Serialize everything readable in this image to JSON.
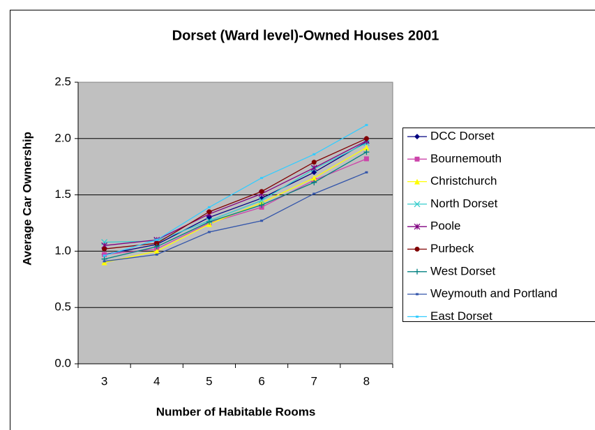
{
  "chart_data": {
    "type": "line",
    "title": "Dorset (Ward level)-Owned Houses 2001",
    "x_label": "Number of Habitable Rooms",
    "y_label": "Average Car Ownership",
    "categories": [
      "3",
      "4",
      "5",
      "6",
      "7",
      "8"
    ],
    "ylim": [
      0,
      2.5
    ],
    "yticks": [
      {
        "value": 0,
        "label": "0.0"
      },
      {
        "value": 0.5,
        "label": "0.5"
      },
      {
        "value": 1,
        "label": "1.0"
      },
      {
        "value": 1.5,
        "label": "1.5"
      },
      {
        "value": 2,
        "label": "2.0"
      },
      {
        "value": 2.5,
        "label": "2.5"
      }
    ],
    "grid": true,
    "legend": "right",
    "series": [
      {
        "name": "DCC Dorset",
        "color": "#000080",
        "marker": "diamond",
        "values": [
          0.97,
          1.06,
          1.3,
          1.47,
          1.7,
          1.97
        ]
      },
      {
        "name": "Bournemouth",
        "color": "#cc44aa",
        "marker": "square",
        "values": [
          0.97,
          1.02,
          1.25,
          1.39,
          1.63,
          1.82
        ]
      },
      {
        "name": "Christchurch",
        "color": "#ffff00",
        "marker": "triangle",
        "values": [
          0.9,
          1.0,
          1.24,
          1.43,
          1.65,
          1.92
        ]
      },
      {
        "name": "North Dorset",
        "color": "#33cccc",
        "marker": "x",
        "values": [
          1.08,
          1.09,
          1.27,
          1.45,
          1.73,
          1.96
        ]
      },
      {
        "name": "Poole",
        "color": "#800080",
        "marker": "star",
        "values": [
          1.05,
          1.1,
          1.33,
          1.51,
          1.74,
          1.98
        ]
      },
      {
        "name": "Purbeck",
        "color": "#800000",
        "marker": "circle",
        "values": [
          1.02,
          1.07,
          1.35,
          1.53,
          1.79,
          2.0
        ]
      },
      {
        "name": "West Dorset",
        "color": "#008080",
        "marker": "plus",
        "values": [
          0.93,
          1.04,
          1.26,
          1.41,
          1.61,
          1.88
        ]
      },
      {
        "name": "Weymouth and Portland",
        "color": "#3355aa",
        "marker": "dash",
        "values": [
          0.91,
          0.97,
          1.17,
          1.27,
          1.51,
          1.7
        ]
      },
      {
        "name": "East Dorset",
        "color": "#33ccff",
        "marker": "dash",
        "values": [
          0.96,
          1.1,
          1.39,
          1.65,
          1.86,
          2.12
        ]
      }
    ]
  }
}
